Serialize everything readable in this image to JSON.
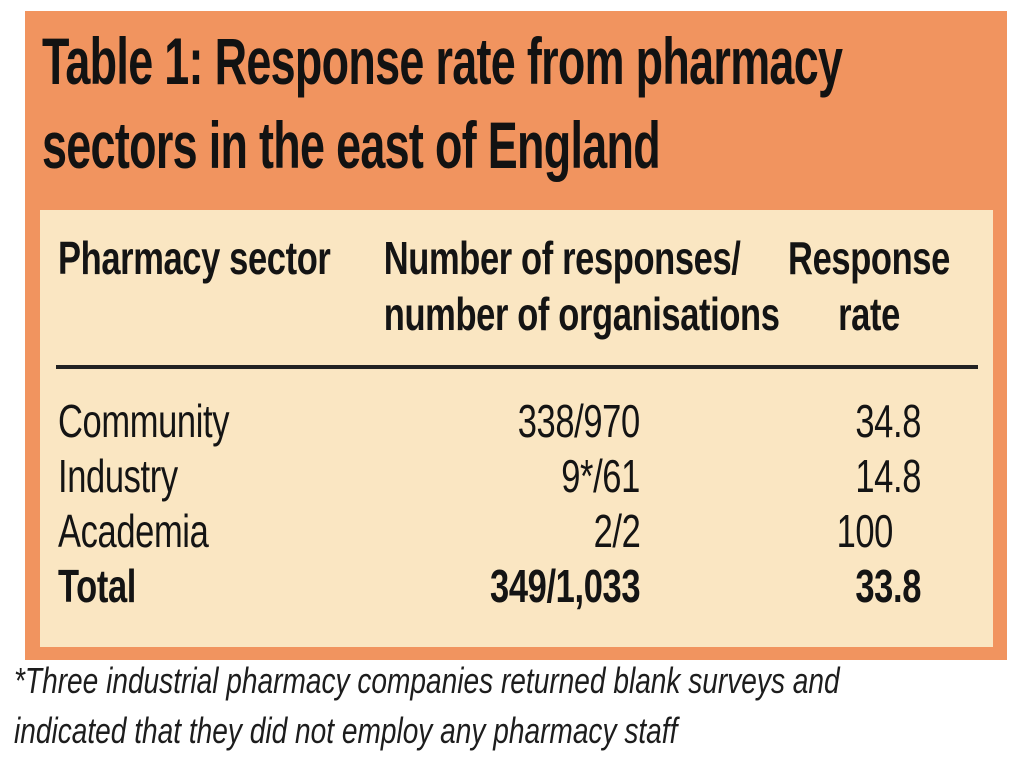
{
  "colors": {
    "panel_orange": "#F1945F",
    "card_cream": "#FAE6C2",
    "text": "#141414",
    "divider": "#222222",
    "page_background": "#FFFFFF"
  },
  "title": {
    "lines": [
      "Table 1: Response rate from pharmacy",
      "sectors in the east of England"
    ]
  },
  "table": {
    "header": [
      {
        "lines": [
          "Pharmacy sector"
        ]
      },
      {
        "lines": [
          "Number of responses/",
          "number of organisations"
        ]
      },
      {
        "lines": [
          "Response",
          "rate"
        ]
      }
    ],
    "rows": [
      {
        "sector": "Community",
        "responses": "338/970",
        "rate_int": "34",
        "rate_frac": ".8"
      },
      {
        "sector": "Industry",
        "responses": "9*/61",
        "rate_int": "14",
        "rate_frac": ".8"
      },
      {
        "sector": "Academia",
        "responses": "2/2",
        "rate_int": "100",
        "rate_frac": ""
      },
      {
        "sector": "Total",
        "responses": "349/1,033",
        "rate_int": "33",
        "rate_frac": ".8"
      }
    ]
  },
  "footnote": {
    "lines": [
      "*Three industrial pharmacy companies returned blank surveys and",
      "indicated that they did not employ any pharmacy staff"
    ]
  },
  "chart_data": {
    "type": "table",
    "title": "Table 1: Response rate from pharmacy sectors in the east of England",
    "columns": [
      "Pharmacy sector",
      "Number of responses/number of organisations",
      "Response rate"
    ],
    "rows": [
      [
        "Community",
        "338/970",
        34.8
      ],
      [
        "Industry",
        "9*/61",
        14.8
      ],
      [
        "Academia",
        "2/2",
        100
      ],
      [
        "Total",
        "349/1,033",
        33.8
      ]
    ],
    "footnote": "*Three industrial pharmacy companies returned blank surveys and indicated that they did not employ any pharmacy staff"
  }
}
